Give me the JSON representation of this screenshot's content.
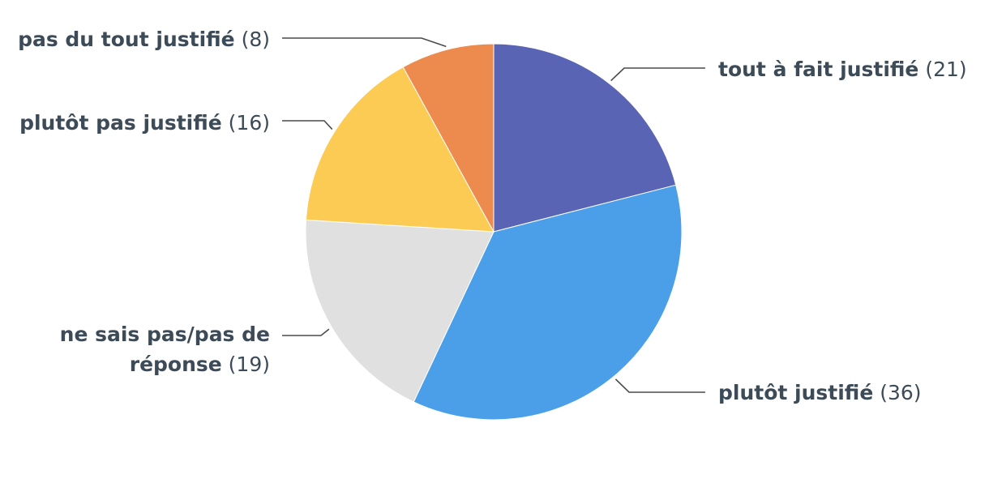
{
  "chart_data": {
    "type": "pie",
    "slices": [
      {
        "label": "tout à fait justifié",
        "value": 21,
        "value_text": "(21)",
        "color": "#5a64b4"
      },
      {
        "label": "plutôt justifié",
        "value": 36,
        "value_text": "(36)",
        "color": "#4a9fe8"
      },
      {
        "label": "ne sais pas/pas de réponse",
        "label_lines": [
          "ne sais pas/pas de",
          "réponse"
        ],
        "value": 19,
        "value_text": "(19)",
        "color": "#e0e0e0"
      },
      {
        "label": "plutôt pas justifié",
        "value": 16,
        "value_text": "(16)",
        "color": "#fbcb54"
      },
      {
        "label": "pas du tout justifié",
        "value": 8,
        "value_text": "(8)",
        "color": "#ed8a4d"
      }
    ],
    "start": "top",
    "direction": "clockwise",
    "legend": "none"
  }
}
